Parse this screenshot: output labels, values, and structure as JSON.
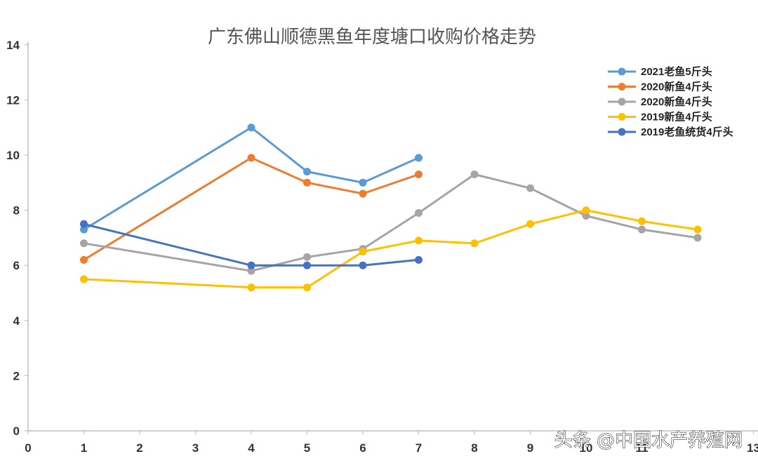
{
  "chart_data": {
    "type": "line",
    "title": "广东佛山顺德黑鱼年度塘口收购价格走势",
    "xlabel": "",
    "ylabel": "",
    "xlim": [
      0,
      13
    ],
    "ylim": [
      0,
      14
    ],
    "x_ticks": [
      "0",
      "1",
      "2",
      "3",
      "4",
      "5",
      "6",
      "7",
      "8",
      "9",
      "10",
      "11",
      "13"
    ],
    "y_ticks": [
      "0",
      "2",
      "4",
      "6",
      "8",
      "10",
      "12",
      "14"
    ],
    "grid": false,
    "legend_position": "top-right",
    "series": [
      {
        "name": "2021老鱼5斤头",
        "color": "#5b9bd5",
        "points": [
          [
            1,
            7.3
          ],
          [
            4,
            11.0
          ],
          [
            5,
            9.4
          ],
          [
            6,
            9.0
          ],
          [
            7,
            9.9
          ]
        ]
      },
      {
        "name": "2020新鱼4斤头",
        "color": "#ed7d31",
        "points": [
          [
            1,
            6.2
          ],
          [
            4,
            9.9
          ],
          [
            5,
            9.0
          ],
          [
            6,
            8.6
          ],
          [
            7,
            9.3
          ]
        ]
      },
      {
        "name": "2020新鱼4斤头",
        "color": "#a5a5a5",
        "points": [
          [
            1,
            6.8
          ],
          [
            4,
            5.8
          ],
          [
            5,
            6.3
          ],
          [
            6,
            6.6
          ],
          [
            7,
            7.9
          ],
          [
            8,
            9.3
          ],
          [
            9,
            8.8
          ],
          [
            10,
            7.8
          ],
          [
            11,
            7.3
          ],
          [
            12,
            7.0
          ]
        ]
      },
      {
        "name": "2019新鱼4斤头",
        "color": "#ffc000",
        "points": [
          [
            1,
            5.5
          ],
          [
            4,
            5.2
          ],
          [
            5,
            5.2
          ],
          [
            6,
            6.5
          ],
          [
            7,
            6.9
          ],
          [
            8,
            6.8
          ],
          [
            9,
            7.5
          ],
          [
            10,
            8.0
          ],
          [
            11,
            7.6
          ],
          [
            12,
            7.3
          ]
        ]
      },
      {
        "name": "2019老鱼统货4斤头",
        "color": "#4472c4",
        "points": [
          [
            1,
            7.5
          ],
          [
            4,
            6.0
          ],
          [
            5,
            6.0
          ],
          [
            6,
            6.0
          ],
          [
            7,
            6.2
          ]
        ]
      }
    ]
  },
  "watermark": "头条 @中国水产养殖网"
}
